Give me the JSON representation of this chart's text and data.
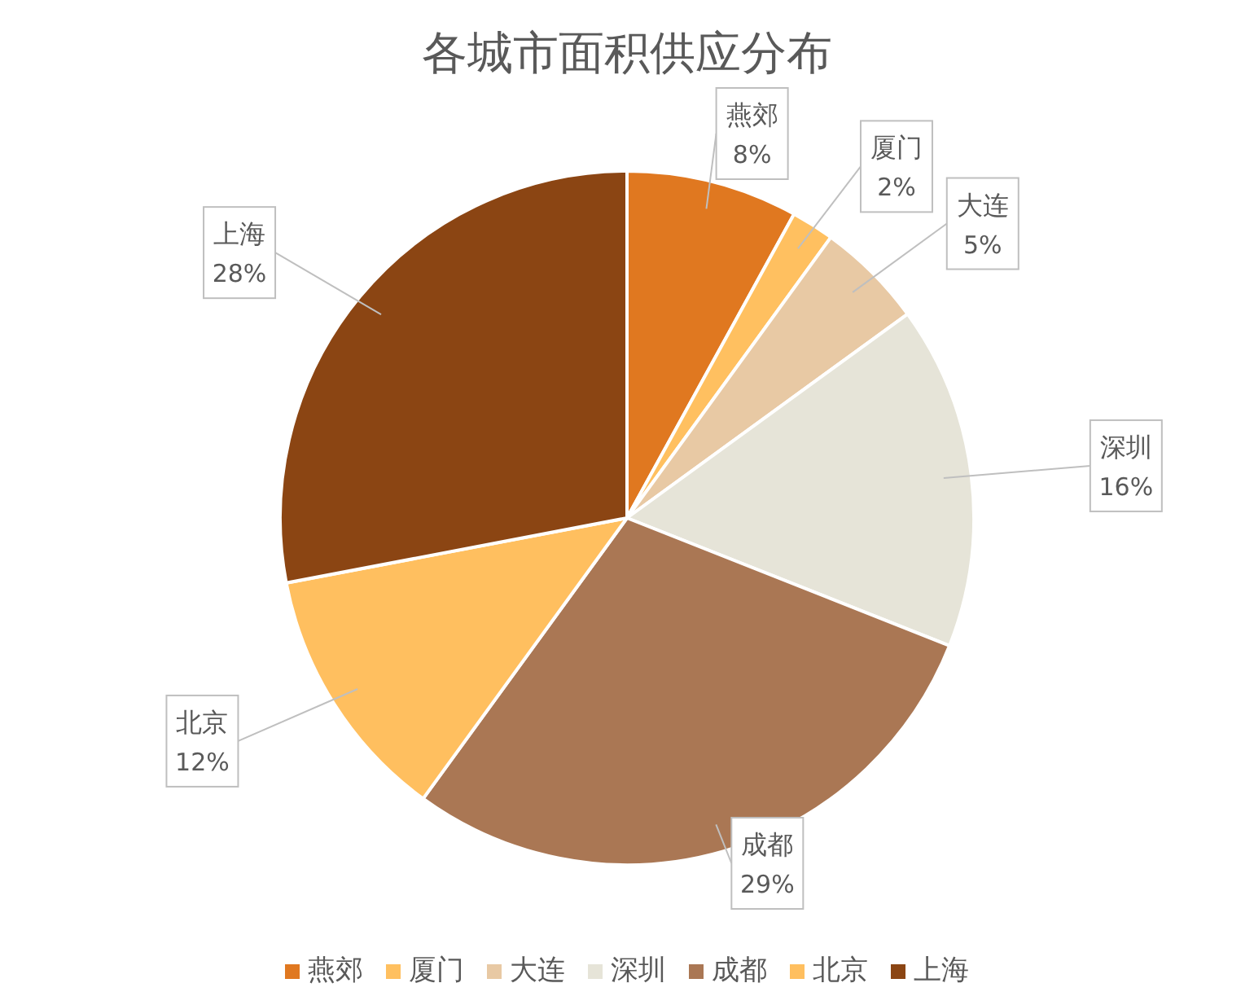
{
  "chart_data": {
    "type": "pie",
    "title": "各城市面积供应分布",
    "categories": [
      "燕郊",
      "厦门",
      "大连",
      "深圳",
      "成都",
      "北京",
      "上海"
    ],
    "values": [
      8,
      2,
      5,
      16,
      29,
      12,
      28
    ],
    "colors": [
      "#e07820",
      "#ffc060",
      "#e8c9a4",
      "#e6e4d8",
      "#aa7754",
      "#ffbf5f",
      "#8b4513"
    ],
    "value_labels": [
      "8%",
      "2%",
      "5%",
      "16%",
      "29%",
      "12%",
      "28%"
    ],
    "legend": "bottom"
  }
}
